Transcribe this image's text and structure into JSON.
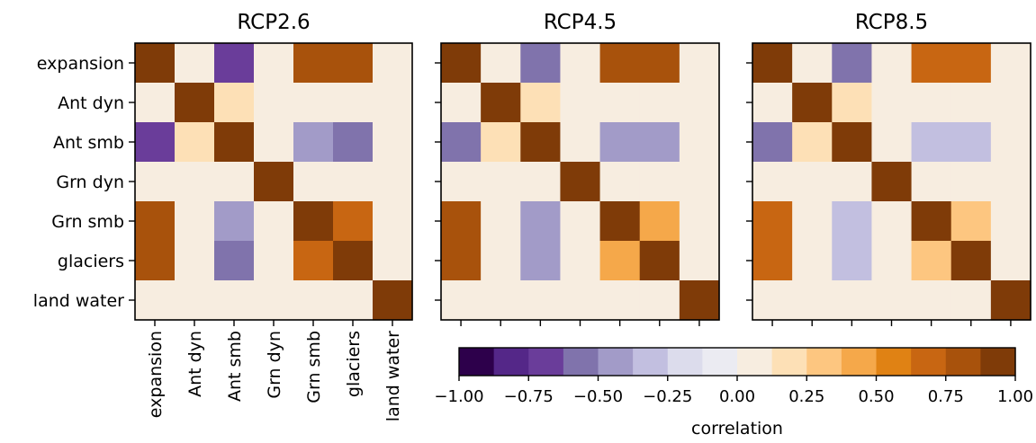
{
  "figure": {
    "colorbar_label": "correlation",
    "colorbar_ticks": [
      "−1.00",
      "−0.75",
      "−0.50",
      "−0.25",
      "0.00",
      "0.25",
      "0.50",
      "0.75",
      "1.00"
    ],
    "colorbar_levels": [
      -1.0,
      -0.875,
      -0.75,
      -0.625,
      -0.5,
      -0.375,
      -0.25,
      -0.125,
      0.0,
      0.125,
      0.25,
      0.375,
      0.5,
      0.625,
      0.75,
      0.875,
      1.0
    ],
    "colormap": [
      "#2d004b",
      "#542788",
      "#6a3d9a",
      "#8073ac",
      "#a29bc8",
      "#c2bfe0",
      "#dcdcec",
      "#ebebf2",
      "#f7ede0",
      "#fde0b6",
      "#fdc680",
      "#f5a84a",
      "#e08214",
      "#c86612",
      "#a8520c",
      "#7f3b08"
    ]
  },
  "chart_data": [
    {
      "type": "heatmap",
      "title": "RCP2.6",
      "labels": [
        "expansion",
        "Ant dyn",
        "Ant smb",
        "Grn dyn",
        "Grn smb",
        "glaciers",
        "land water"
      ],
      "values": [
        [
          1.0,
          0.0,
          -0.7,
          0.05,
          0.75,
          0.85,
          0.05
        ],
        [
          0.0,
          1.0,
          0.2,
          0.0,
          0.0,
          0.0,
          0.0
        ],
        [
          -0.7,
          0.2,
          1.0,
          0.0,
          -0.45,
          -0.55,
          0.05
        ],
        [
          0.05,
          0.0,
          0.0,
          1.0,
          0.0,
          0.05,
          0.0
        ],
        [
          0.75,
          0.0,
          -0.45,
          0.0,
          1.0,
          0.65,
          0.0
        ],
        [
          0.85,
          0.0,
          -0.55,
          0.05,
          0.65,
          1.0,
          0.05
        ],
        [
          0.05,
          0.0,
          0.05,
          0.0,
          0.0,
          0.05,
          1.0
        ]
      ]
    },
    {
      "type": "heatmap",
      "title": "RCP4.5",
      "labels": [
        "expansion",
        "Ant dyn",
        "Ant smb",
        "Grn dyn",
        "Grn smb",
        "glaciers",
        "land water"
      ],
      "values": [
        [
          1.0,
          0.0,
          -0.55,
          0.05,
          0.75,
          0.75,
          0.05
        ],
        [
          0.0,
          1.0,
          0.2,
          0.0,
          0.0,
          0.0,
          0.0
        ],
        [
          -0.55,
          0.2,
          1.0,
          0.0,
          -0.45,
          -0.45,
          0.05
        ],
        [
          0.05,
          0.0,
          0.0,
          1.0,
          0.0,
          0.05,
          0.0
        ],
        [
          0.75,
          0.0,
          -0.45,
          0.0,
          1.0,
          0.45,
          0.0
        ],
        [
          0.75,
          0.0,
          -0.45,
          0.05,
          0.45,
          1.0,
          0.05
        ],
        [
          0.05,
          0.0,
          0.05,
          0.0,
          0.0,
          0.05,
          1.0
        ]
      ]
    },
    {
      "type": "heatmap",
      "title": "RCP8.5",
      "labels": [
        "expansion",
        "Ant dyn",
        "Ant smb",
        "Grn dyn",
        "Grn smb",
        "glaciers",
        "land water"
      ],
      "values": [
        [
          1.0,
          0.0,
          -0.55,
          0.05,
          0.65,
          0.65,
          0.05
        ],
        [
          0.0,
          1.0,
          0.2,
          0.0,
          0.0,
          0.0,
          0.0
        ],
        [
          -0.55,
          0.2,
          1.0,
          0.0,
          -0.3,
          -0.3,
          0.05
        ],
        [
          0.05,
          0.0,
          0.0,
          1.0,
          0.0,
          0.05,
          0.0
        ],
        [
          0.65,
          0.0,
          -0.3,
          0.0,
          1.0,
          0.3,
          0.0
        ],
        [
          0.65,
          0.0,
          -0.3,
          0.05,
          0.3,
          1.0,
          0.05
        ],
        [
          0.05,
          0.0,
          0.05,
          0.0,
          0.0,
          0.05,
          1.0
        ]
      ]
    }
  ]
}
